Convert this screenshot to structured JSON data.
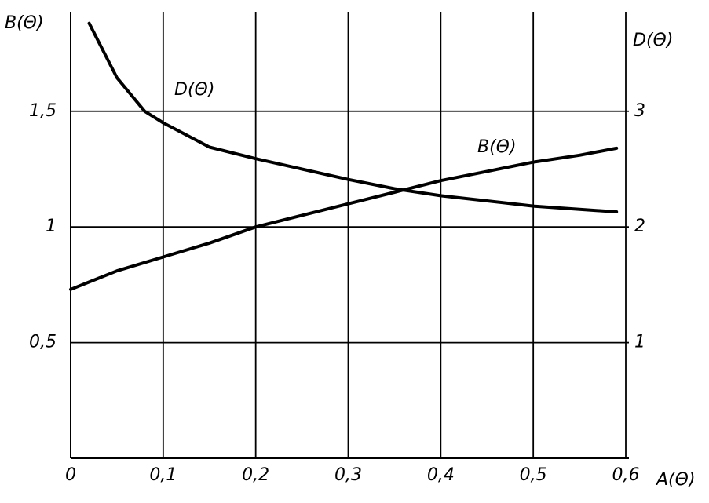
{
  "chart_data": {
    "type": "line",
    "y_label": "B(Θ)",
    "y2_label": "D(Θ)",
    "x_label": "A(Θ)",
    "xlim": [
      0,
      0.6
    ],
    "xticks": [
      0,
      {
        "value": 0.1,
        "label": "0,1"
      },
      {
        "value": 0.2,
        "label": "0,2"
      },
      {
        "value": 0.3,
        "label": "0,3"
      },
      {
        "value": 0.4,
        "label": "0,4"
      },
      {
        "value": 0.5,
        "label": "0,5"
      },
      {
        "value": 0.6,
        "label": "0,6"
      }
    ],
    "ylim": [
      0,
      1.93
    ],
    "yticks": [
      {
        "value": 0.5,
        "label": "0,5"
      },
      1,
      {
        "value": 1.5,
        "label": "1,5"
      }
    ],
    "y2lim": [
      0,
      3.86
    ],
    "y2ticks": [
      1,
      2,
      3
    ],
    "grid": true,
    "color": "#000000",
    "series": [
      {
        "name": "B(Θ)",
        "color": "#000000",
        "x": [
          0,
          0.05,
          0.1,
          0.15,
          0.2,
          0.25,
          0.3,
          0.35,
          0.4,
          0.45,
          0.5,
          0.55,
          0.59
        ],
        "values": [
          0.73,
          0.81,
          0.87,
          0.93,
          1.0,
          1.05,
          1.1,
          1.15,
          1.2,
          1.24,
          1.28,
          1.31,
          1.34
        ]
      },
      {
        "name": "D(Θ)",
        "color": "#000000",
        "axis": "y2",
        "x": [
          0.02,
          0.05,
          0.08,
          0.1,
          0.15,
          0.2,
          0.3,
          0.35,
          0.4,
          0.5,
          0.59
        ],
        "values": [
          3.76,
          3.29,
          3.0,
          2.9,
          2.69,
          2.59,
          2.41,
          2.33,
          2.27,
          2.18,
          2.13
        ]
      }
    ]
  }
}
